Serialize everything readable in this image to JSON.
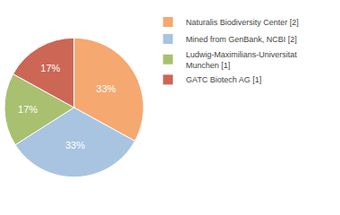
{
  "chart_data": {
    "type": "pie",
    "categories": [
      "Naturalis Biodiversity Center [2]",
      "Mined from GenBank, NCBI [2]",
      "Ludwig-Maximilians-Universitat\nMunchen [1]",
      "GATC Biotech AG [1]"
    ],
    "values": [
      33,
      33,
      17,
      17
    ],
    "value_labels": [
      "33%",
      "33%",
      "17%",
      "17%"
    ],
    "colors": [
      "#F5A870",
      "#A8C4E0",
      "#A8C070",
      "#CC6655"
    ],
    "data_labels": true,
    "legend": "upper right"
  }
}
